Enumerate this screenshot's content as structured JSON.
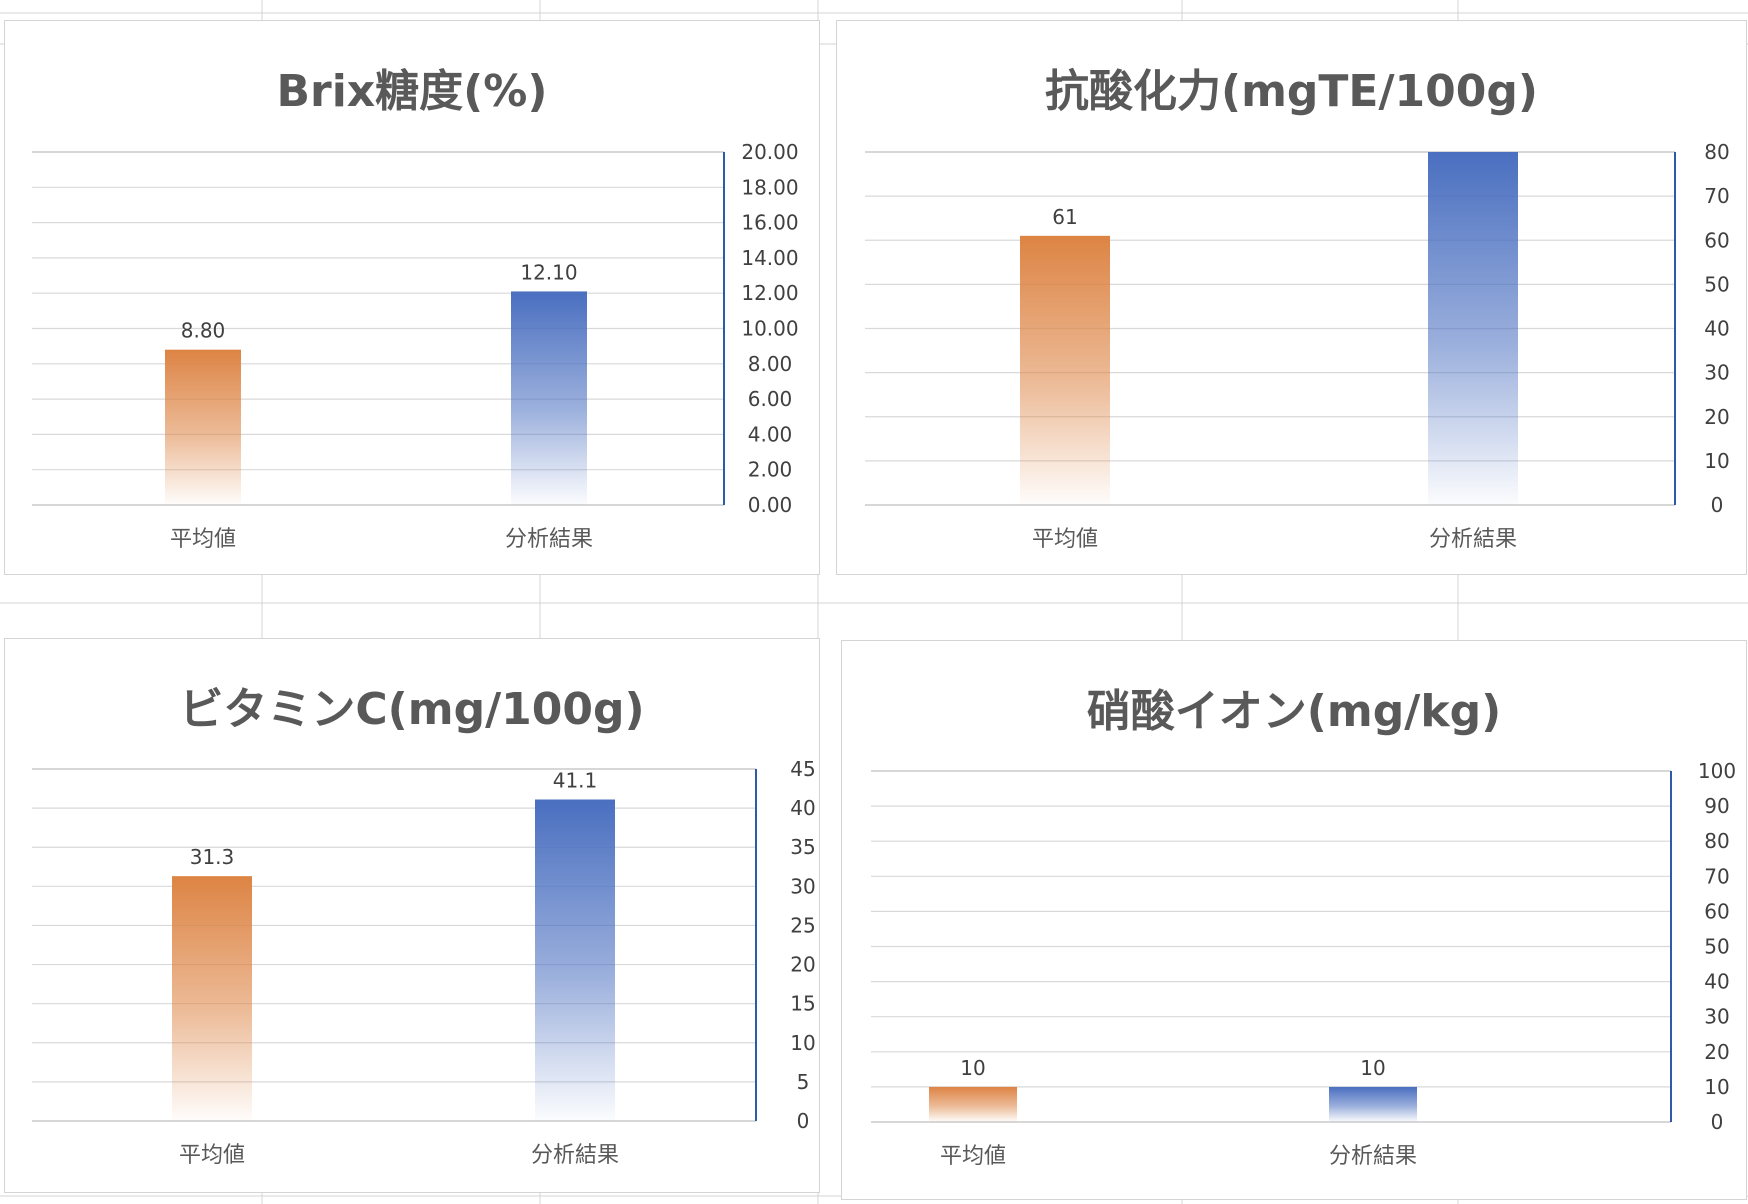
{
  "colors": {
    "avg_series": "#DD8444",
    "result_series": "#4A6FC0",
    "gridline": "#D9D9D9",
    "axis_line": "#2E5AA8",
    "sheet_grid": "#D4D4D4"
  },
  "chart_data": [
    {
      "type": "bar",
      "title": "Brix糖度(%)",
      "categories": [
        "平均値",
        "分析結果"
      ],
      "values": [
        8.8,
        12.1
      ],
      "data_labels": [
        "8.80",
        "12.10"
      ],
      "ylim": [
        0,
        20
      ],
      "yticks": [
        "0.00",
        "2.00",
        "4.00",
        "6.00",
        "8.00",
        "10.00",
        "12.00",
        "14.00",
        "16.00",
        "18.00",
        "20.00"
      ],
      "grid": true,
      "y_axis_side": "right",
      "fill": "vertical gradient to white"
    },
    {
      "type": "bar",
      "title": "抗酸化力(mgTE/100g)",
      "categories": [
        "平均値",
        "分析結果"
      ],
      "values": [
        61,
        80
      ],
      "data_labels": [
        "61",
        ""
      ],
      "ylim": [
        0,
        80
      ],
      "yticks": [
        "0",
        "10",
        "20",
        "30",
        "40",
        "50",
        "60",
        "70",
        "80"
      ],
      "grid": true,
      "y_axis_side": "right",
      "fill": "vertical gradient to white"
    },
    {
      "type": "bar",
      "title": "ビタミンC(mg/100g)",
      "categories": [
        "平均値",
        "分析結果"
      ],
      "values": [
        31.3,
        41.1
      ],
      "data_labels": [
        "31.3",
        "41.1"
      ],
      "ylim": [
        0,
        45
      ],
      "yticks": [
        "0",
        "5",
        "10",
        "15",
        "20",
        "25",
        "30",
        "35",
        "40",
        "45"
      ],
      "grid": true,
      "y_axis_side": "right",
      "fill": "vertical gradient to white"
    },
    {
      "type": "bar",
      "title": "硝酸イオン(mg/kg)",
      "categories": [
        "平均値",
        "分析結果"
      ],
      "values": [
        10,
        10
      ],
      "data_labels": [
        "10",
        "10"
      ],
      "ylim": [
        0,
        100
      ],
      "yticks": [
        "0",
        "10",
        "20",
        "30",
        "40",
        "50",
        "60",
        "70",
        "80",
        "90",
        "100"
      ],
      "grid": true,
      "y_axis_side": "right",
      "fill": "vertical gradient to white"
    }
  ]
}
